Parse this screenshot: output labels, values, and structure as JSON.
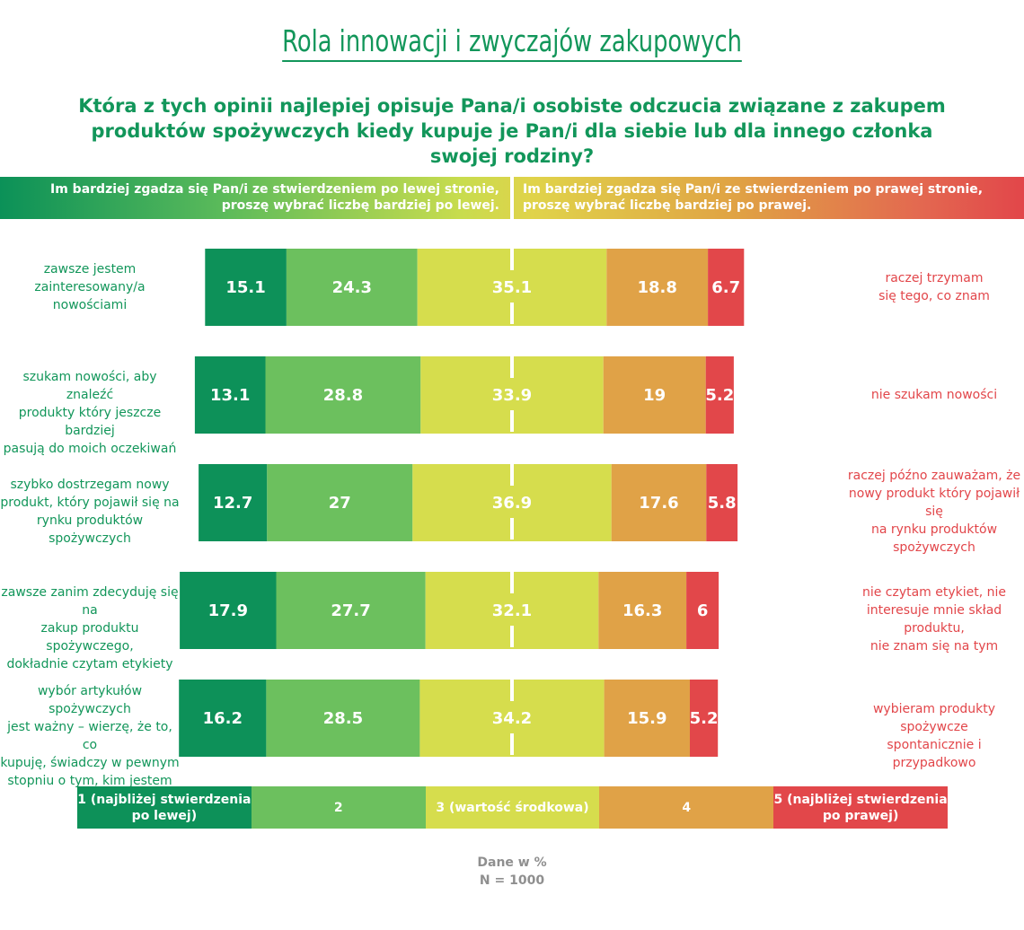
{
  "title": "Rola innowacji i zwyczajów zakupowych",
  "question": "Która z tych opinii najlepiej opisuje Pana/i osobiste odczucia związane z zakupem produktów spożywczych kiedy kupuje je Pan/i dla siebie lub dla innego członka swojej rodziny?",
  "band": {
    "left": "Im bardziej zgadza się Pan/i ze stwierdzeniem po lewej stronie,\nproszę wybrać liczbę bardziej po lewej.",
    "right": "Im bardziej zgadza się Pan/i ze stwierdzeniem po prawej stronie,\nproszę wybrać liczbę bardziej po prawej."
  },
  "colors": {
    "c1": "#0d9159",
    "c2": "#6cc05e",
    "c3": "#d6dd4d",
    "c4": "#e0a247",
    "c5": "#e2474a",
    "accent_green": "#12965a",
    "accent_red": "#e2464a"
  },
  "chart_data": {
    "type": "bar",
    "stacked": true,
    "diverging_center": 3,
    "unit": "%",
    "categories": [
      "zawsze jestem zainteresowany/a nowościami",
      "szukam nowości, aby znaleźć produkty który jeszcze bardziej pasują do moich oczekiwań",
      "szybko dostrzegam nowy produkt,  który pojawił się na rynku produktów spożywczych",
      "zawsze zanim zdecyduję się na zakup produktu spożywczego, dokładnie czytam etykiety",
      "wybór artykułów spożywczych jest ważny – wierzę, że to, co kupuję, świadczy w pewnym stopniu o tym, kim jestem"
    ],
    "left_labels": [
      "zawsze jestem\nzainteresowany/a\nnowościami",
      "szukam nowości, aby znaleźć\nprodukty który jeszcze bardziej\npasują do moich oczekiwań",
      "szybko dostrzegam nowy\nprodukt,  który pojawił się na\nrynku produktów spożywczych",
      "zawsze zanim zdecyduję się na\nzakup produktu spożywczego,\ndokładnie czytam etykiety",
      "wybór artykułów spożywczych\njest ważny – wierzę, że to, co\nkupuję, świadczy w pewnym\nstopniu o tym, kim jestem"
    ],
    "right_labels": [
      "raczej trzymam\nsię tego, co znam",
      "nie szukam nowości",
      "raczej późno zauważam, że\nnowy produkt który pojawił się\nna rynku produktów\nspożywczych",
      "nie czytam etykiet, nie\ninteresuje mnie skład produktu,\nnie znam się na tym",
      "wybieram produkty spożywcze\nspontanicznie i przypadkowo"
    ],
    "series": [
      {
        "name": "1 (najbliżej stwierdzenia po lewej)",
        "values": [
          15.1,
          13.1,
          12.7,
          17.9,
          16.2
        ]
      },
      {
        "name": "2",
        "values": [
          24.3,
          28.8,
          27,
          27.7,
          28.5
        ]
      },
      {
        "name": "3 (wartość środkowa)",
        "values": [
          35.1,
          33.9,
          36.9,
          32.1,
          34.2
        ]
      },
      {
        "name": "4",
        "values": [
          18.8,
          19,
          17.6,
          16.3,
          15.9
        ]
      },
      {
        "name": "5 (najbliżej stwierdzenia po prawej)",
        "values": [
          6.7,
          5.2,
          5.8,
          6,
          5.2
        ]
      }
    ],
    "legend": [
      "1 (najbliżej stwierdzenia\npo lewej)",
      "2",
      "3 (wartość środkowa)",
      "4",
      "5 (najbliżej stwierdzenia\npo prawej)"
    ]
  },
  "footer": {
    "line1": "Dane w %",
    "line2": "N = 1000"
  }
}
